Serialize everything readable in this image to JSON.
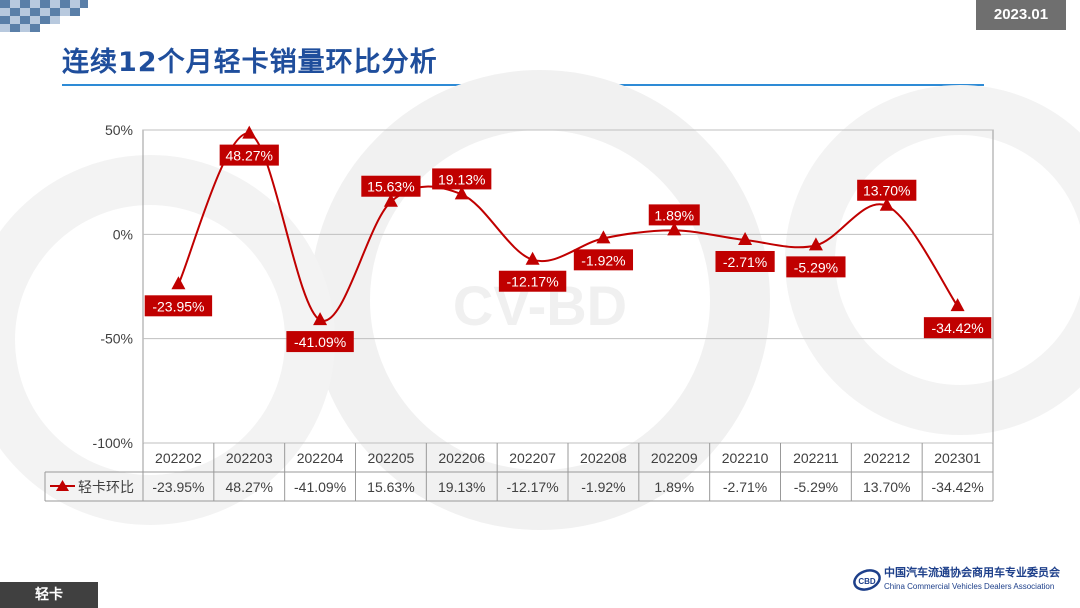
{
  "header": {
    "date": "2023.01",
    "title": "连续12个月轻卡销量环比分析"
  },
  "watermark": {
    "text": "CV-BD"
  },
  "footer": {
    "tag": "轻卡",
    "org_cn": "中国汽车流通协会商用车专业委员会",
    "org_en": "China Commercial Vehicles Dealers Association",
    "org_logo_text": "CBD"
  },
  "colors": {
    "series": "#c00000",
    "title": "#1f4e9c",
    "rule": "#2e8bd6",
    "grid": "#bfbfbf"
  },
  "chart_data": {
    "type": "line",
    "title": "",
    "categories": [
      "202202",
      "202203",
      "202204",
      "202205",
      "202206",
      "202207",
      "202208",
      "202209",
      "202210",
      "202211",
      "202212",
      "202301"
    ],
    "series": [
      {
        "name": "轻卡环比",
        "values": [
          -23.95,
          48.27,
          -41.09,
          15.63,
          19.13,
          -12.17,
          -1.92,
          1.89,
          -2.71,
          -5.29,
          13.7,
          -34.42
        ],
        "labels": [
          "-23.95%",
          "48.27%",
          "-41.09%",
          "15.63%",
          "19.13%",
          "-12.17%",
          "-1.92%",
          "1.89%",
          "-2.71%",
          "-5.29%",
          "13.70%",
          "-34.42%"
        ]
      }
    ],
    "yticks": [
      50,
      0,
      -50,
      -100
    ],
    "ytick_labels": [
      "50%",
      "0%",
      "-50%",
      "-100%"
    ],
    "ylim": [
      -100,
      50
    ],
    "marker": "triangle",
    "data_table": true,
    "smooth": true
  }
}
